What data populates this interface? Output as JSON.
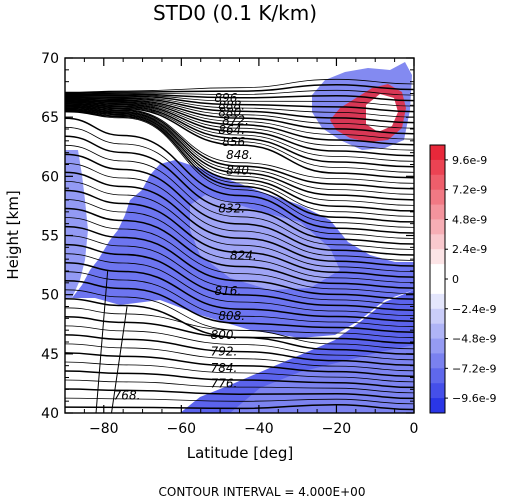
{
  "chart_data": {
    "type": "contour",
    "title": "STD0  (0.1 K/km)",
    "xlabel": "Latitude [deg]",
    "ylabel": "Height [km]",
    "xlim": [
      -90,
      0
    ],
    "ylim": [
      40,
      70
    ],
    "x_ticks": [
      -80,
      -60,
      -40,
      -20,
      0
    ],
    "y_ticks": [
      40,
      45,
      50,
      55,
      60,
      65,
      70
    ],
    "contour_interval_text": "CONTOUR INTERVAL = 4.000E+00",
    "contour_labels": [
      {
        "text": "768.",
        "lat": -74,
        "z": 41.5
      },
      {
        "text": "776.",
        "lat": -49,
        "z": 42.5
      },
      {
        "text": "784.",
        "lat": -49,
        "z": 43.8
      },
      {
        "text": "792.",
        "lat": -49,
        "z": 45.2
      },
      {
        "text": "800.",
        "lat": -49,
        "z": 46.6
      },
      {
        "text": "808.",
        "lat": -47,
        "z": 48.2
      },
      {
        "text": "816.",
        "lat": -48,
        "z": 50.3
      },
      {
        "text": "824.",
        "lat": -44,
        "z": 53.3
      },
      {
        "text": "832.",
        "lat": -47,
        "z": 57.3
      },
      {
        "text": "840.",
        "lat": -45,
        "z": 60.5
      },
      {
        "text": "848.",
        "lat": -45,
        "z": 61.8
      },
      {
        "text": "856.",
        "lat": -46,
        "z": 62.9
      },
      {
        "text": "864.",
        "lat": -47,
        "z": 63.9
      },
      {
        "text": "872.",
        "lat": -46,
        "z": 64.7
      },
      {
        "text": "880.",
        "lat": -47,
        "z": 65.4
      },
      {
        "text": "888.",
        "lat": -47,
        "z": 66.0
      },
      {
        "text": "896.",
        "lat": -48,
        "z": 66.6
      }
    ],
    "colorbar": {
      "labels": [
        "9.6e-9",
        "7.2e-9",
        "4.8e-9",
        "2.4e-9",
        "0",
        "−2.4e-9",
        "−4.8e-9",
        "−7.2e-9",
        "−9.6e-9"
      ],
      "positive_color": "#e8283a",
      "negative_color": "#2a36e6"
    },
    "shaded_regions": [
      {
        "sign": "negative",
        "desc": "blue band from lower-right, through mid-latitudes to upper-left"
      },
      {
        "sign": "positive",
        "desc": "red patch near 65 km, 15S"
      }
    ],
    "grid": false
  }
}
